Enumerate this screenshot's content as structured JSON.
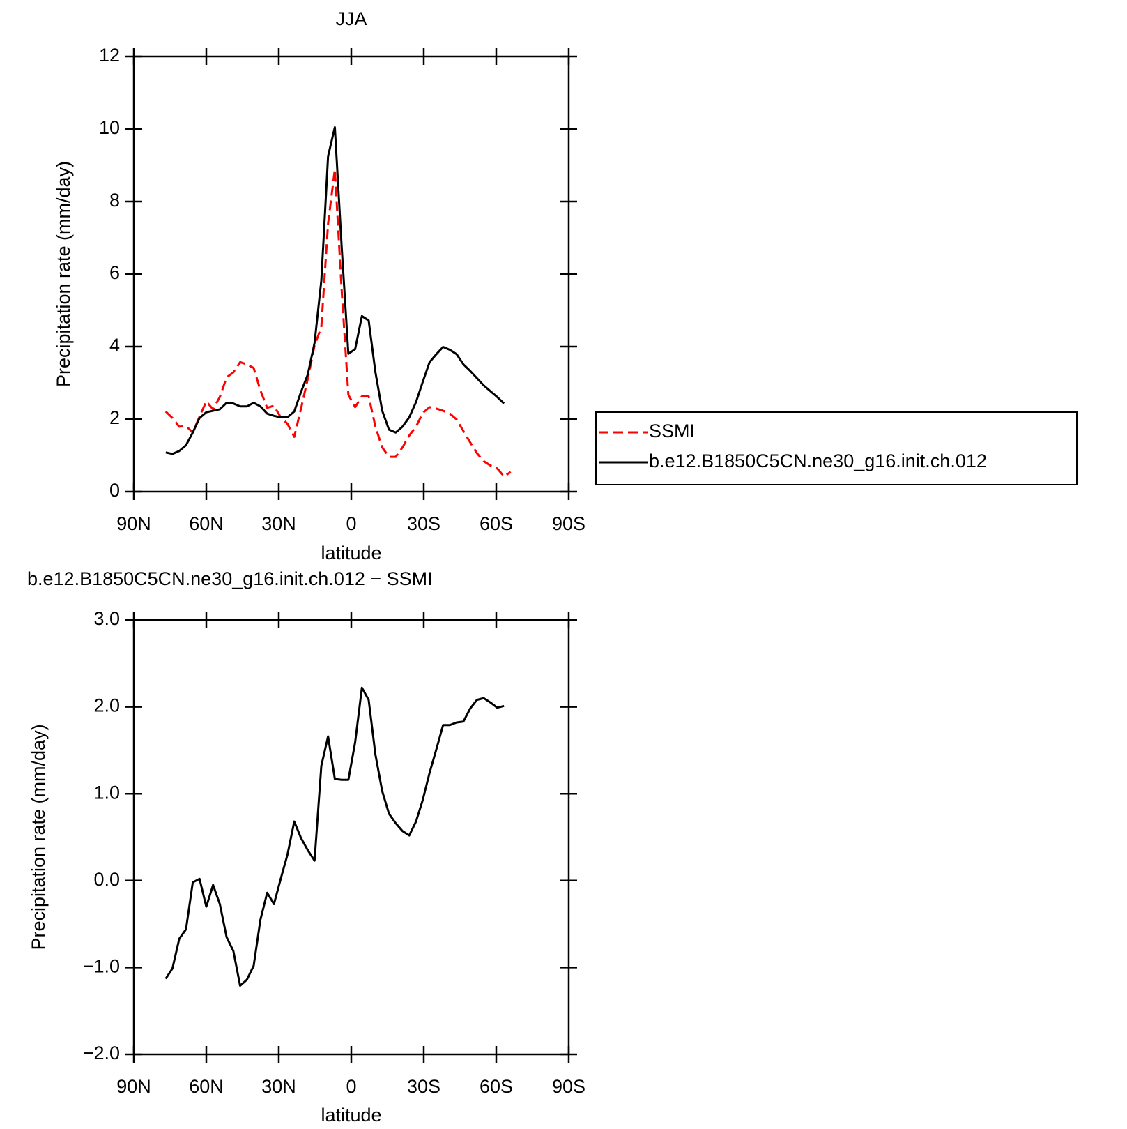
{
  "chart_data": [
    {
      "type": "line",
      "title": "JJA",
      "x_label": "latitude",
      "y_label": "Precipitation rate (mm/day)",
      "xlim": [
        90,
        -90
      ],
      "xticks": [
        {
          "value": 90,
          "label": "90N"
        },
        {
          "value": 60,
          "label": "60N"
        },
        {
          "value": 30,
          "label": "30N"
        },
        0,
        {
          "value": -30,
          "label": "30S"
        },
        {
          "value": -60,
          "label": "60S"
        },
        {
          "value": -90,
          "label": "90S"
        }
      ],
      "ylim": [
        0,
        12
      ],
      "yticks": [
        0,
        2,
        4,
        6,
        8,
        10,
        12
      ],
      "legend": "right",
      "series": [
        {
          "name": "SSMI",
          "color": "#ff0000",
          "line_style": "dashed",
          "x": [
            76.8,
            74.0,
            71.2,
            68.4,
            65.6,
            62.8,
            60.0,
            57.2,
            54.4,
            51.6,
            48.8,
            46.0,
            43.2,
            40.4,
            37.6,
            34.8,
            32.0,
            29.2,
            26.4,
            23.6,
            20.8,
            18.0,
            15.2,
            12.4,
            9.6,
            6.8,
            4.0,
            1.2,
            -1.6,
            -4.4,
            -7.2,
            -10.0,
            -12.8,
            -15.6,
            -18.4,
            -21.2,
            -24.0,
            -26.8,
            -29.6,
            -32.4,
            -35.2,
            -38.0,
            -40.8,
            -43.6,
            -46.4,
            -49.2,
            -52.0,
            -54.8,
            -57.6,
            -60.4,
            -63.2,
            -66.0
          ],
          "values": [
            2.21,
            2.03,
            1.79,
            1.81,
            1.63,
            2.07,
            2.49,
            2.27,
            2.61,
            3.15,
            3.29,
            3.57,
            3.51,
            3.41,
            2.79,
            2.31,
            2.37,
            2.05,
            1.87,
            1.51,
            2.29,
            3.11,
            4.03,
            4.54,
            7.39,
            8.89,
            5.58,
            2.67,
            2.33,
            2.63,
            2.63,
            1.79,
            1.22,
            0.96,
            0.96,
            1.22,
            1.55,
            1.79,
            2.17,
            2.33,
            2.29,
            2.23,
            2.15,
            1.99,
            1.67,
            1.36,
            1.06,
            0.84,
            0.72,
            0.64,
            0.42,
            0.54
          ]
        },
        {
          "name": "b.e12.B1850C5CN.ne30_g16.init.ch.012",
          "color": "#000000",
          "line_style": "solid",
          "x": [
            76.8,
            74.0,
            71.2,
            68.4,
            65.6,
            62.8,
            60.0,
            57.2,
            54.4,
            51.6,
            48.8,
            46.0,
            43.2,
            40.4,
            37.6,
            34.8,
            32.0,
            29.2,
            26.4,
            23.6,
            20.8,
            18.0,
            15.2,
            12.4,
            9.6,
            6.8,
            4.0,
            1.2,
            -1.6,
            -4.4,
            -7.2,
            -10.0,
            -12.8,
            -15.6,
            -18.4,
            -21.2,
            -24.0,
            -26.8,
            -29.6,
            -32.4,
            -35.2,
            -38.0,
            -40.8,
            -43.6,
            -46.4,
            -49.2,
            -52.0,
            -54.8,
            -57.6,
            -60.4,
            -63.2
          ],
          "values": [
            1.08,
            1.04,
            1.12,
            1.28,
            1.63,
            2.03,
            2.19,
            2.23,
            2.27,
            2.45,
            2.43,
            2.35,
            2.35,
            2.45,
            2.35,
            2.15,
            2.09,
            2.05,
            2.05,
            2.21,
            2.75,
            3.23,
            4.1,
            5.82,
            9.25,
            10.05,
            6.78,
            3.8,
            3.93,
            4.84,
            4.72,
            3.29,
            2.23,
            1.71,
            1.63,
            1.79,
            2.05,
            2.47,
            3.03,
            3.57,
            3.79,
            3.99,
            3.91,
            3.79,
            3.51,
            3.33,
            3.13,
            2.93,
            2.77,
            2.61,
            2.43
          ]
        }
      ]
    },
    {
      "type": "line",
      "title": "b.e12.B1850C5CN.ne30_g16.init.ch.012 − SSMI",
      "x_label": "latitude",
      "y_label": "Precipitation rate (mm/day)",
      "xlim": [
        90,
        -90
      ],
      "xticks": [
        {
          "value": 90,
          "label": "90N"
        },
        {
          "value": 60,
          "label": "60N"
        },
        {
          "value": 30,
          "label": "30N"
        },
        0,
        {
          "value": -30,
          "label": "30S"
        },
        {
          "value": -60,
          "label": "60S"
        },
        {
          "value": -90,
          "label": "90S"
        }
      ],
      "ylim": [
        -2,
        3
      ],
      "yticks": [
        {
          "value": -2,
          "label": "−2.0"
        },
        {
          "value": -1,
          "label": "−1.0"
        },
        {
          "value": 0,
          "label": "0.0"
        },
        {
          "value": 1,
          "label": "1.0"
        },
        {
          "value": 2,
          "label": "2.0"
        },
        {
          "value": 3,
          "label": "3.0"
        }
      ],
      "series": [
        {
          "color": "#000000",
          "line_style": "solid",
          "x": [
            76.8,
            74.0,
            71.2,
            68.4,
            65.6,
            62.8,
            60.0,
            57.2,
            54.4,
            51.6,
            48.8,
            46.0,
            43.2,
            40.4,
            37.6,
            34.8,
            32.0,
            29.2,
            26.4,
            23.6,
            20.8,
            18.0,
            15.2,
            12.4,
            9.6,
            6.8,
            4.0,
            1.2,
            -1.6,
            -4.4,
            -7.2,
            -10.0,
            -12.8,
            -15.6,
            -18.4,
            -21.2,
            -24.0,
            -26.8,
            -29.6,
            -32.4,
            -35.2,
            -38.0,
            -40.8,
            -43.6,
            -46.4,
            -49.2,
            -52.0,
            -54.8,
            -57.6,
            -60.4,
            -63.2
          ],
          "values": [
            -1.13,
            -1.01,
            -0.67,
            -0.56,
            -0.02,
            0.02,
            -0.3,
            -0.05,
            -0.27,
            -0.65,
            -0.81,
            -1.21,
            -1.14,
            -0.98,
            -0.45,
            -0.14,
            -0.27,
            0.02,
            0.3,
            0.68,
            0.49,
            0.35,
            0.23,
            1.32,
            1.66,
            1.17,
            1.16,
            1.16,
            1.59,
            2.22,
            2.08,
            1.45,
            1.03,
            0.77,
            0.66,
            0.57,
            0.52,
            0.68,
            0.93,
            1.24,
            1.51,
            1.79,
            1.79,
            1.82,
            1.83,
            1.98,
            2.08,
            2.1,
            2.05,
            1.99,
            2.01
          ]
        }
      ]
    }
  ]
}
